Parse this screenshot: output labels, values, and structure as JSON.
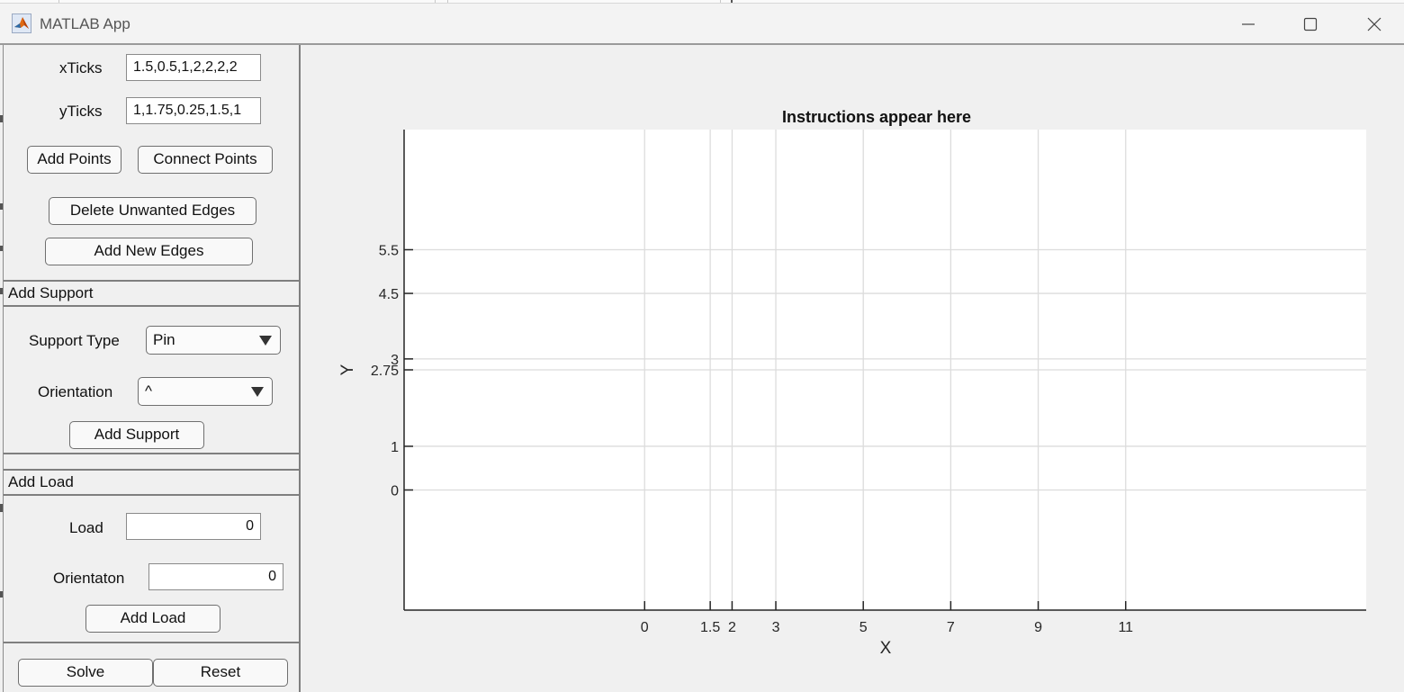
{
  "window": {
    "title": "MATLAB App",
    "controls": [
      "minimize",
      "maximize",
      "close"
    ]
  },
  "icons": {
    "app": "matlab-logo-icon",
    "minimize": "minimize-icon",
    "maximize": "maximize-icon",
    "close": "close-icon",
    "dropdown": "chevron-down-icon"
  },
  "ticks_panel": {
    "xticks_label": "xTicks",
    "xticks_value": "1.5,0.5,1,2,2,2,2",
    "yticks_label": "yTicks",
    "yticks_value": "1,1.75,0.25,1.5,1",
    "add_points": "Add Points",
    "connect_points": "Connect Points",
    "delete_edges": "Delete Unwanted Edges",
    "add_edges": "Add New Edges"
  },
  "support_panel": {
    "title": "Add Support",
    "support_type_label": "Support Type",
    "support_type_value": "Pin",
    "orientation_label": "Orientation",
    "orientation_value": "^",
    "add_button": "Add Support"
  },
  "load_panel": {
    "title": "Add Load",
    "load_label": "Load",
    "load_value": "0",
    "orientation_label": "Orientaton",
    "orientation_value": "0",
    "add_button": "Add Load"
  },
  "footer": {
    "solve": "Solve",
    "reset": "Reset"
  },
  "chart_data": {
    "type": "scatter",
    "title": "Instructions appear here",
    "xlabel": "X",
    "ylabel": "Y",
    "xticks": [
      0,
      1.5,
      2,
      3,
      5,
      7,
      9,
      11
    ],
    "xtick_labels": [
      "0",
      "1.5",
      "2",
      "3",
      "5",
      "7",
      "9",
      "11"
    ],
    "yticks": [
      0,
      1,
      2.75,
      3,
      4.5,
      5.5
    ],
    "ytick_labels": [
      "0",
      "1",
      "2.75",
      "3",
      "4.5",
      "5.5"
    ],
    "xlim": [
      -5.5,
      16.5
    ],
    "ylim": [
      -2.75,
      8.25
    ],
    "grid": true,
    "series": []
  }
}
